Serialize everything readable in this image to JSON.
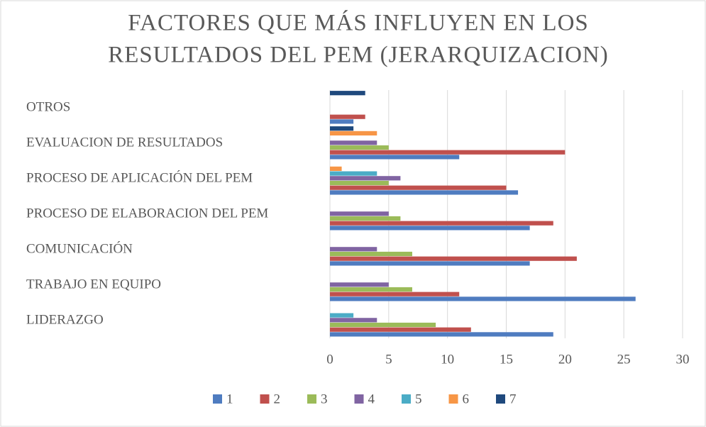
{
  "chart_data": {
    "type": "barh",
    "title": [
      "FACTORES QUE MÁS INFLUYEN EN LOS",
      "RESULTADOS DEL PEM (JERARQUIZACION)"
    ],
    "categories": [
      "LIDERAZGO",
      "TRABAJO EN EQUIPO",
      "COMUNICACIÓN",
      "PROCESO DE ELABORACION  DEL PEM",
      "PROCESO DE APLICACIÓN DEL PEM",
      "EVALUACION DE RESULTADOS",
      "OTROS"
    ],
    "series": [
      {
        "name": "1",
        "color": "#4f7cc0",
        "values": [
          19,
          26,
          17,
          17,
          16,
          11,
          2
        ]
      },
      {
        "name": "2",
        "color": "#c0504d",
        "values": [
          12,
          11,
          21,
          19,
          15,
          20,
          3
        ]
      },
      {
        "name": "3",
        "color": "#9bbb59",
        "values": [
          9,
          7,
          7,
          6,
          5,
          5,
          0
        ]
      },
      {
        "name": "4",
        "color": "#8064a2",
        "values": [
          4,
          5,
          4,
          5,
          6,
          4,
          0
        ]
      },
      {
        "name": "5",
        "color": "#4bacc6",
        "values": [
          2,
          0,
          0,
          0,
          4,
          0,
          0
        ]
      },
      {
        "name": "6",
        "color": "#f79646",
        "values": [
          0,
          0,
          0,
          0,
          1,
          4,
          0
        ]
      },
      {
        "name": "7",
        "color": "#1f497d",
        "values": [
          0,
          0,
          0,
          0,
          0,
          2,
          3
        ]
      }
    ],
    "xlim": [
      0,
      30
    ],
    "xticks": [
      0,
      5,
      10,
      15,
      20,
      25,
      30
    ],
    "grid": true,
    "legend": "bottom"
  }
}
